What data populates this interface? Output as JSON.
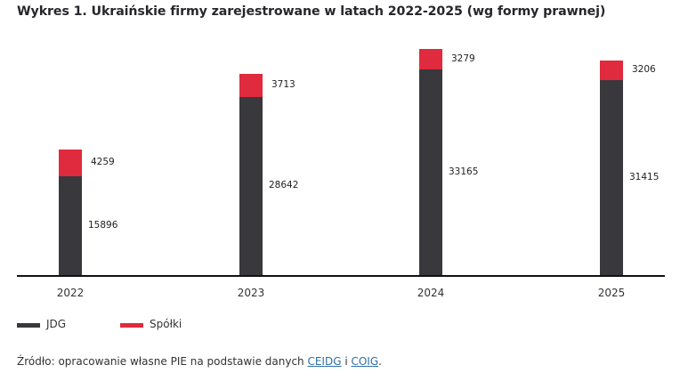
{
  "title": "Wykres 1. Ukraińskie firmy zarejestrowane w latach 2022-2025 (wg formy prawnej)",
  "legend": [
    {
      "label": "JDG",
      "color": "#38383d"
    },
    {
      "label": "Spółki",
      "color": "#e02a3d"
    }
  ],
  "source": {
    "prefix": "Źródło: opracowanie własne PIE na podstawie danych ",
    "link1": "CEIDG",
    "sep": " i ",
    "link2": "COIG",
    "suffix": "."
  },
  "chart_data": {
    "type": "bar",
    "stacked": true,
    "title": "Wykres 1. Ukraińskie firmy zarejestrowane w latach 2022-2025 (wg formy prawnej)",
    "xlabel": "",
    "ylabel": "",
    "categories": [
      "2022",
      "2023",
      "2024",
      "2025"
    ],
    "series": [
      {
        "name": "JDG",
        "color": "#38383d",
        "values": [
          15896,
          28642,
          33165,
          31415
        ]
      },
      {
        "name": "Spółki",
        "color": "#e02a3d",
        "values": [
          4259,
          3713,
          3279,
          3206
        ]
      }
    ],
    "ylim": [
      0,
      36444
    ],
    "grid": false,
    "y_axis_visible": false,
    "data_labels": true,
    "legend_position": "bottom-left"
  }
}
